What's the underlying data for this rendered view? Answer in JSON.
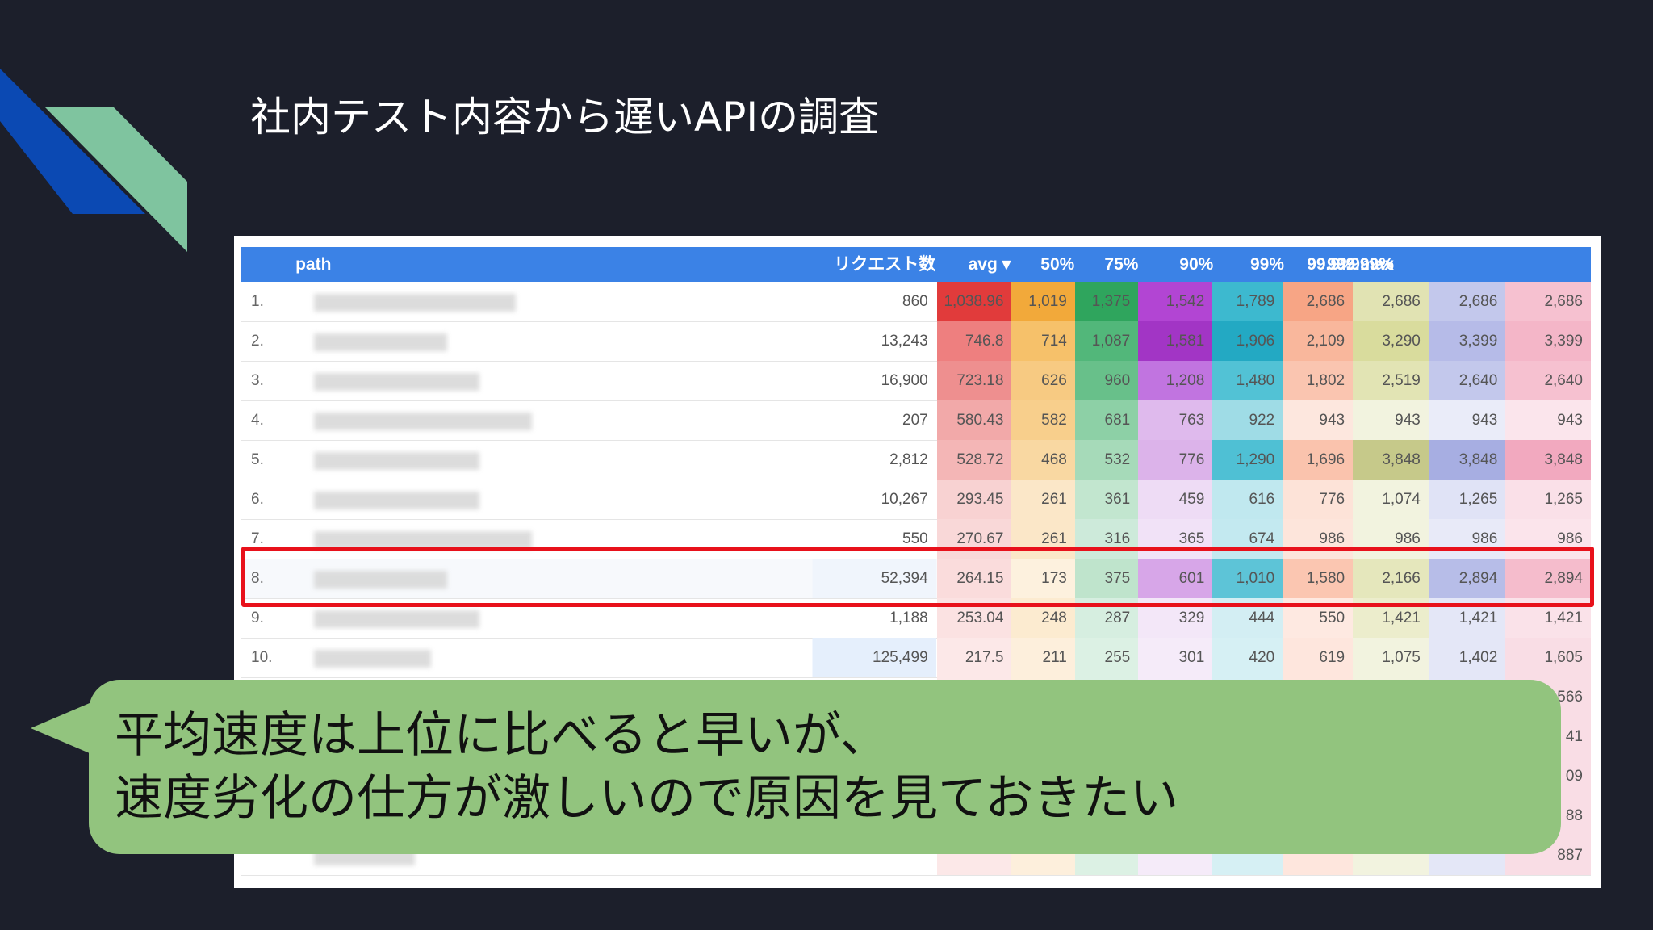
{
  "slide": {
    "title": "社内テスト内容から遅いAPIの調査"
  },
  "table": {
    "columns": [
      "path",
      "リクエスト数",
      "avg ▾",
      "50%",
      "75%",
      "90%",
      "99%",
      "99.9%",
      "99.99%",
      "99.999%",
      "max"
    ],
    "rows": [
      {
        "idx": "1.",
        "count": "860",
        "avg": "1,038.96",
        "p50": "1,019",
        "p75": "1,375",
        "p90": "1,542",
        "p99": "1,789",
        "p999": "2,686",
        "p9999": "2,686",
        "p99999": "2,686",
        "max": "2,686"
      },
      {
        "idx": "2.",
        "count": "13,243",
        "avg": "746.8",
        "p50": "714",
        "p75": "1,087",
        "p90": "1,581",
        "p99": "1,906",
        "p999": "2,109",
        "p9999": "3,290",
        "p99999": "3,399",
        "max": "3,399"
      },
      {
        "idx": "3.",
        "count": "16,900",
        "avg": "723.18",
        "p50": "626",
        "p75": "960",
        "p90": "1,208",
        "p99": "1,480",
        "p999": "1,802",
        "p9999": "2,519",
        "p99999": "2,640",
        "max": "2,640"
      },
      {
        "idx": "4.",
        "count": "207",
        "avg": "580.43",
        "p50": "582",
        "p75": "681",
        "p90": "763",
        "p99": "922",
        "p999": "943",
        "p9999": "943",
        "p99999": "943",
        "max": "943"
      },
      {
        "idx": "5.",
        "count": "2,812",
        "avg": "528.72",
        "p50": "468",
        "p75": "532",
        "p90": "776",
        "p99": "1,290",
        "p999": "1,696",
        "p9999": "3,848",
        "p99999": "3,848",
        "max": "3,848"
      },
      {
        "idx": "6.",
        "count": "10,267",
        "avg": "293.45",
        "p50": "261",
        "p75": "361",
        "p90": "459",
        "p99": "616",
        "p999": "776",
        "p9999": "1,074",
        "p99999": "1,265",
        "max": "1,265"
      },
      {
        "idx": "7.",
        "count": "550",
        "avg": "270.67",
        "p50": "261",
        "p75": "316",
        "p90": "365",
        "p99": "674",
        "p999": "986",
        "p9999": "986",
        "p99999": "986",
        "max": "986"
      },
      {
        "idx": "8.",
        "count": "52,394",
        "avg": "264.15",
        "p50": "173",
        "p75": "375",
        "p90": "601",
        "p99": "1,010",
        "p999": "1,580",
        "p9999": "2,166",
        "p99999": "2,894",
        "max": "2,894"
      },
      {
        "idx": "9.",
        "count": "1,188",
        "avg": "253.04",
        "p50": "248",
        "p75": "287",
        "p90": "329",
        "p99": "444",
        "p999": "550",
        "p9999": "1,421",
        "p99999": "1,421",
        "max": "1,421"
      },
      {
        "idx": "10.",
        "count": "125,499",
        "avg": "217.5",
        "p50": "211",
        "p75": "255",
        "p90": "301",
        "p99": "420",
        "p999": "619",
        "p9999": "1,075",
        "p99999": "1,402",
        "max": "1,605"
      },
      {
        "idx": "",
        "count": "",
        "avg": "",
        "p50": "",
        "p75": "",
        "p90": "",
        "p99": "",
        "p999": "",
        "p9999": "",
        "p99999": "",
        "max": "566"
      },
      {
        "idx": "",
        "count": "",
        "avg": "",
        "p50": "",
        "p75": "",
        "p90": "",
        "p99": "",
        "p999": "",
        "p9999": "",
        "p99999": "",
        "max": "41"
      },
      {
        "idx": "",
        "count": "",
        "avg": "",
        "p50": "",
        "p75": "",
        "p90": "",
        "p99": "",
        "p999": "",
        "p9999": "",
        "p99999": "",
        "max": "09"
      },
      {
        "idx": "",
        "count": "",
        "avg": "",
        "p50": "",
        "p75": "",
        "p90": "",
        "p99": "",
        "p999": "",
        "p9999": "",
        "p99999": "",
        "max": "88"
      },
      {
        "idx": "",
        "count": "",
        "avg": "",
        "p50": "",
        "p75": "",
        "p90": "",
        "p99": "",
        "p999": "",
        "p9999": "",
        "p99999": "",
        "max": "887"
      }
    ],
    "highlighted_row": "8."
  },
  "callout": {
    "line1": "平均速度は上位に比べると早いが、",
    "line2": "速度劣化の仕方が激しいので原因を見ておきたい"
  },
  "colors": {
    "background": "#1c1f2b",
    "header": "#3b82e6",
    "highlight": "#e8111b",
    "callout": "#92c47e",
    "deco_blue": "#0b49b3",
    "deco_green": "#7fc49f"
  }
}
